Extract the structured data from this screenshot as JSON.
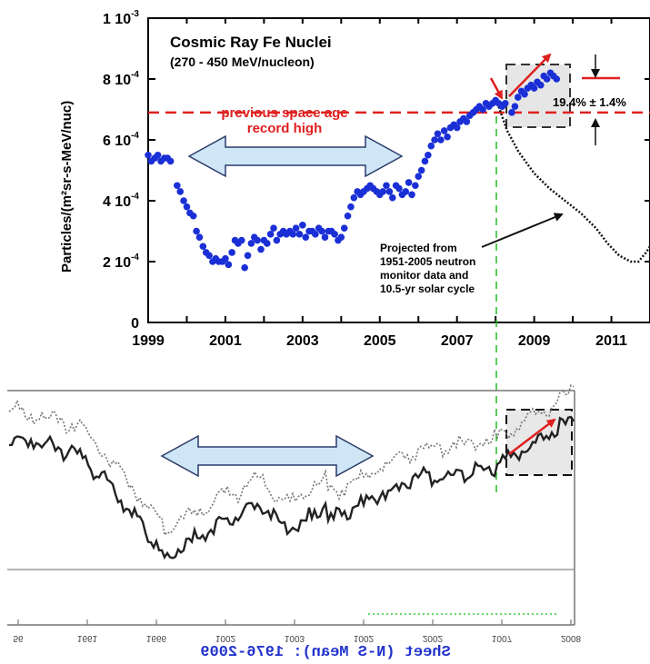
{
  "chart_data": [
    {
      "type": "scatter",
      "title": "Cosmic Ray Fe Nuclei",
      "subtitle": "(270 - 450 MeV/nucleon)",
      "xlabel": "",
      "ylabel": "Particles/(m²sr-s-MeV/nuc)",
      "xlim": [
        1999,
        2012
      ],
      "ylim": [
        0,
        0.001
      ],
      "x_ticks": [
        "1999",
        "2001",
        "2003",
        "2005",
        "2007",
        "2009",
        "2011"
      ],
      "y_ticks": [
        {
          "mantissa": "0",
          "exp": ""
        },
        {
          "mantissa": "2 10",
          "exp": "-4"
        },
        {
          "mantissa": "4 10",
          "exp": "-4"
        },
        {
          "mantissa": "6 10",
          "exp": "-4"
        },
        {
          "mantissa": "8 10",
          "exp": "-4"
        },
        {
          "mantissa": "1 10",
          "exp": "-3"
        }
      ],
      "grid": false,
      "series": [
        {
          "name": "",
          "color": "#1a2fd6",
          "marker": "circle",
          "points": [
            [
              1999.0,
              0.00055
            ],
            [
              1999.08,
              0.00053
            ],
            [
              1999.17,
              0.00054
            ],
            [
              1999.25,
              0.00055
            ],
            [
              1999.33,
              0.00053
            ],
            [
              1999.42,
              0.00054
            ],
            [
              1999.5,
              0.00054
            ],
            [
              1999.58,
              0.00053
            ],
            [
              1999.75,
              0.00045
            ],
            [
              1999.83,
              0.00043
            ],
            [
              1999.92,
              0.0004
            ],
            [
              2000.0,
              0.00038
            ],
            [
              2000.08,
              0.00036
            ],
            [
              2000.17,
              0.00035
            ],
            [
              2000.25,
              0.0003
            ],
            [
              2000.33,
              0.00028
            ],
            [
              2000.42,
              0.00025
            ],
            [
              2000.5,
              0.00023
            ],
            [
              2000.58,
              0.00022
            ],
            [
              2000.67,
              0.0002
            ],
            [
              2000.75,
              0.00021
            ],
            [
              2000.83,
              0.0002
            ],
            [
              2000.92,
              0.0002
            ],
            [
              2001.0,
              0.00021
            ],
            [
              2001.08,
              0.00019
            ],
            [
              2001.17,
              0.00023
            ],
            [
              2001.25,
              0.00027
            ],
            [
              2001.33,
              0.00026
            ],
            [
              2001.42,
              0.00027
            ],
            [
              2001.5,
              0.00018
            ],
            [
              2001.58,
              0.00022
            ],
            [
              2001.67,
              0.00026
            ],
            [
              2001.75,
              0.00028
            ],
            [
              2001.83,
              0.00027
            ],
            [
              2001.92,
              0.00024
            ],
            [
              2002.0,
              0.00027
            ],
            [
              2002.08,
              0.00026
            ],
            [
              2002.17,
              0.00029
            ],
            [
              2002.25,
              0.00031
            ],
            [
              2002.33,
              0.00027
            ],
            [
              2002.42,
              0.00029
            ],
            [
              2002.5,
              0.0003
            ],
            [
              2002.58,
              0.00029
            ],
            [
              2002.67,
              0.0003
            ],
            [
              2002.75,
              0.00029
            ],
            [
              2002.83,
              0.00031
            ],
            [
              2002.92,
              0.00029
            ],
            [
              2003.0,
              0.00032
            ],
            [
              2003.08,
              0.00028
            ],
            [
              2003.17,
              0.0003
            ],
            [
              2003.25,
              0.0003
            ],
            [
              2003.33,
              0.00029
            ],
            [
              2003.42,
              0.00031
            ],
            [
              2003.5,
              0.0003
            ],
            [
              2003.58,
              0.00028
            ],
            [
              2003.67,
              0.0003
            ],
            [
              2003.75,
              0.0003
            ],
            [
              2003.83,
              0.00029
            ],
            [
              2003.92,
              0.00027
            ],
            [
              2004.0,
              0.00028
            ],
            [
              2004.08,
              0.00031
            ],
            [
              2004.17,
              0.00035
            ],
            [
              2004.25,
              0.00038
            ],
            [
              2004.33,
              0.00041
            ],
            [
              2004.42,
              0.00043
            ],
            [
              2004.5,
              0.00042
            ],
            [
              2004.58,
              0.00043
            ],
            [
              2004.67,
              0.00044
            ],
            [
              2004.75,
              0.00045
            ],
            [
              2004.83,
              0.00044
            ],
            [
              2004.92,
              0.00043
            ],
            [
              2005.0,
              0.00042
            ],
            [
              2005.08,
              0.00043
            ],
            [
              2005.17,
              0.00045
            ],
            [
              2005.25,
              0.00043
            ],
            [
              2005.33,
              0.00041
            ],
            [
              2005.42,
              0.00045
            ],
            [
              2005.5,
              0.00044
            ],
            [
              2005.58,
              0.00042
            ],
            [
              2005.67,
              0.00043
            ],
            [
              2005.75,
              0.00046
            ],
            [
              2005.83,
              0.00042
            ],
            [
              2005.92,
              0.00045
            ],
            [
              2006.0,
              0.00048
            ],
            [
              2006.08,
              0.0005
            ],
            [
              2006.17,
              0.00053
            ],
            [
              2006.25,
              0.00055
            ],
            [
              2006.33,
              0.00058
            ],
            [
              2006.42,
              0.0006
            ],
            [
              2006.5,
              0.00062
            ],
            [
              2006.58,
              0.0006
            ],
            [
              2006.67,
              0.00063
            ],
            [
              2006.75,
              0.00061
            ],
            [
              2006.83,
              0.00064
            ],
            [
              2006.92,
              0.00065
            ],
            [
              2007.0,
              0.00064
            ],
            [
              2007.08,
              0.00066
            ],
            [
              2007.17,
              0.00067
            ],
            [
              2007.25,
              0.00066
            ],
            [
              2007.33,
              0.00068
            ],
            [
              2007.42,
              0.00069
            ],
            [
              2007.5,
              0.0007
            ],
            [
              2007.58,
              0.00071
            ],
            [
              2007.67,
              0.0007
            ],
            [
              2007.75,
              0.00072
            ],
            [
              2007.83,
              0.00071
            ],
            [
              2007.92,
              0.00072
            ],
            [
              2008.0,
              0.00073
            ],
            [
              2008.08,
              0.00072
            ],
            [
              2008.17,
              0.00071
            ],
            [
              2008.25,
              0.00072
            ],
            [
              2008.42,
              0.00069
            ],
            [
              2008.5,
              0.00071
            ],
            [
              2008.58,
              0.00074
            ],
            [
              2008.67,
              0.00076
            ],
            [
              2008.75,
              0.00075
            ],
            [
              2008.83,
              0.00077
            ],
            [
              2008.92,
              0.00078
            ],
            [
              2009.0,
              0.00077
            ],
            [
              2009.08,
              0.00079
            ],
            [
              2009.17,
              0.00078
            ],
            [
              2009.25,
              0.00081
            ],
            [
              2009.33,
              0.0008
            ],
            [
              2009.42,
              0.00082
            ],
            [
              2009.5,
              0.00081
            ],
            [
              2009.58,
              0.0008
            ]
          ]
        }
      ],
      "projection_curve": {
        "color": "#111111",
        "points": [
          [
            2008.05,
            0.00072
          ],
          [
            2008.3,
            0.00063
          ],
          [
            2008.6,
            0.00056
          ],
          [
            2009.0,
            0.00049
          ],
          [
            2009.4,
            0.00044
          ],
          [
            2009.8,
            0.0004
          ],
          [
            2010.2,
            0.00036
          ],
          [
            2010.6,
            0.00031
          ],
          [
            2010.9,
            0.00026
          ],
          [
            2011.2,
            0.00022
          ],
          [
            2011.5,
            0.0002
          ],
          [
            2011.7,
            0.0002
          ],
          [
            2011.9,
            0.00023
          ],
          [
            2012.1,
            0.00027
          ]
        ]
      },
      "annotations": {
        "record_line": {
          "label_line1": "previous space age",
          "label_line2": "record high",
          "value": 0.00069,
          "color": "#e02020"
        },
        "percent": "19.4% ± 1.4%",
        "projected_line1": "Projected from",
        "projected_line2": "1951-2005 neutron",
        "projected_line3": "monitor data and",
        "projected_line4": "10.5-yr solar cycle"
      },
      "colors": {
        "arrow_fill": "#cfe6f7",
        "arrow_stroke": "#2a3a6a",
        "highlight_box": "#e6e6e6",
        "guide_line": "#22bb22"
      }
    },
    {
      "type": "line",
      "title": "",
      "xlabel": "",
      "ylabel": "",
      "mirrored_caption": "Sheet (N-S Mean): 1976-2009",
      "x_ticks": [
        "56",
        "1661",
        "1666",
        "1002",
        "1003",
        "1002",
        "2002",
        "1007",
        "2008"
      ],
      "series": [
        {
          "name": "",
          "style": "solid",
          "color": "#222222"
        },
        {
          "name": "",
          "style": "dotted",
          "color": "#666666"
        }
      ]
    }
  ]
}
